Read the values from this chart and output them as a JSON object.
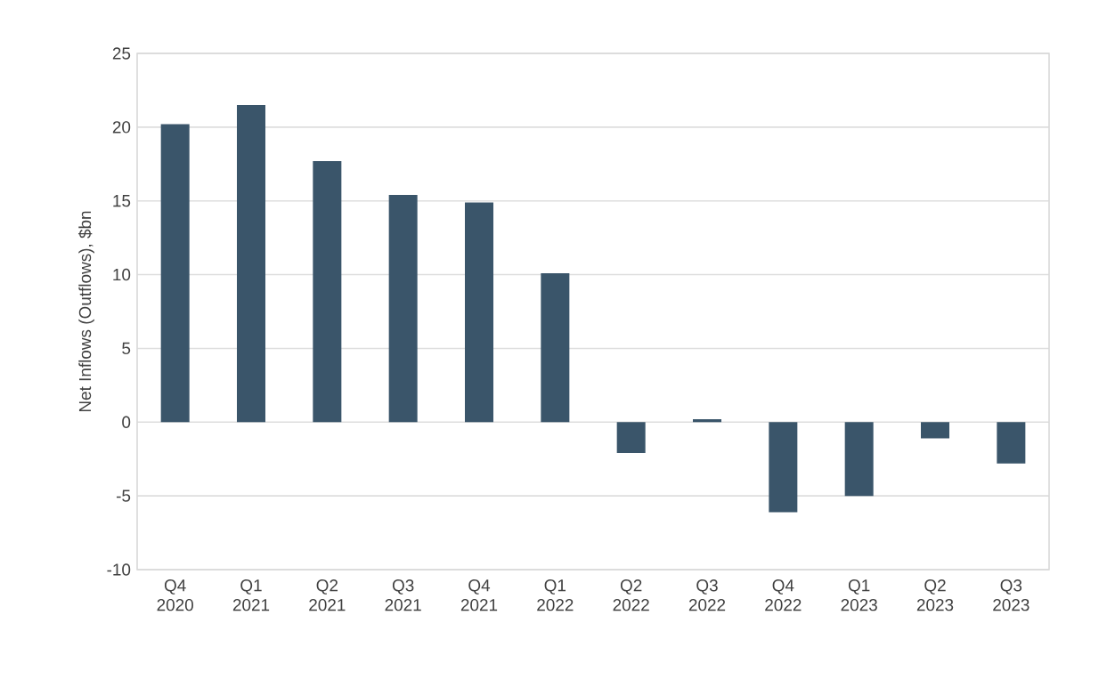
{
  "chart_data": {
    "type": "bar",
    "ylabel": "Net Inflows (Outflows), $bn",
    "categories": [
      "Q4 2020",
      "Q1 2021",
      "Q2 2021",
      "Q3 2021",
      "Q4 2021",
      "Q1 2022",
      "Q2 2022",
      "Q3 2022",
      "Q4 2022",
      "Q1 2023",
      "Q2 2023",
      "Q3 2023"
    ],
    "values": [
      20.2,
      21.5,
      17.7,
      15.4,
      14.9,
      10.1,
      -2.1,
      0.2,
      -6.1,
      -5.0,
      -1.1,
      -2.8
    ],
    "color": "#3a556a",
    "ylim": [
      -10,
      25
    ],
    "yticks": [
      -10,
      -5,
      0,
      5,
      10,
      15,
      20,
      25
    ],
    "grid": "y"
  }
}
